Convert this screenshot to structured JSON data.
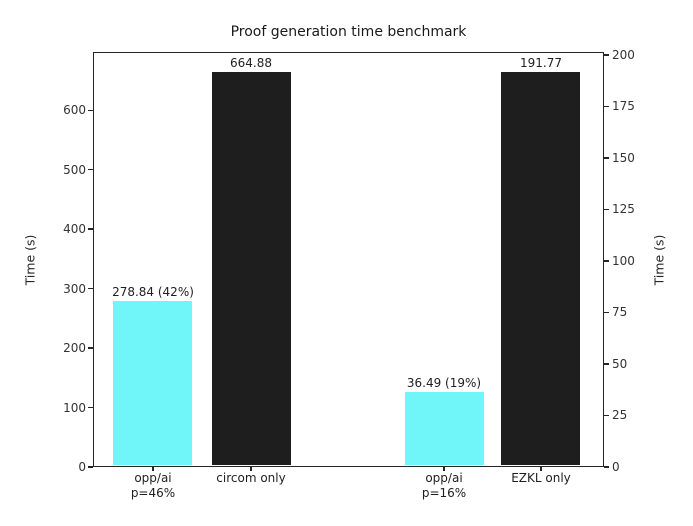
{
  "chart_data": {
    "type": "bar",
    "title": "Proof generation time benchmark",
    "grid": false,
    "legend": "none",
    "left_axis": {
      "label": "Time (s)",
      "ticks": [
        0,
        100,
        200,
        300,
        400,
        500,
        600
      ],
      "ylim": [
        0,
        698
      ]
    },
    "right_axis": {
      "label": "Time (s)",
      "ticks": [
        0,
        25,
        50,
        75,
        100,
        125,
        150,
        175,
        200
      ],
      "ylim": [
        0,
        201.4
      ]
    },
    "bars": [
      {
        "category_lines": [
          "opp/ai",
          "p=46%"
        ],
        "value": 278.84,
        "value_label": "278.84 (42%)",
        "axis": "left",
        "color": "#70f5f8"
      },
      {
        "category_lines": [
          "circom only"
        ],
        "value": 664.88,
        "value_label": "664.88",
        "axis": "left",
        "color": "#1e1e1e"
      },
      {
        "category_lines": [
          "opp/ai",
          "p=16%"
        ],
        "value": 36.49,
        "value_label": "36.49 (19%)",
        "axis": "right",
        "color": "#70f5f8"
      },
      {
        "category_lines": [
          "EZKL only"
        ],
        "value": 191.77,
        "value_label": "191.77",
        "axis": "right",
        "color": "#1e1e1e"
      }
    ],
    "layout_hints": {
      "bar_center_fracs": [
        0.1174,
        0.3092,
        0.6869,
        0.8767
      ],
      "bar_width_frac": 0.1546
    },
    "colors": {
      "cyan_bar": "#70f5f8",
      "black_bar": "#1e1e1e",
      "spine": "#262626",
      "tick_text": "#333333"
    }
  }
}
